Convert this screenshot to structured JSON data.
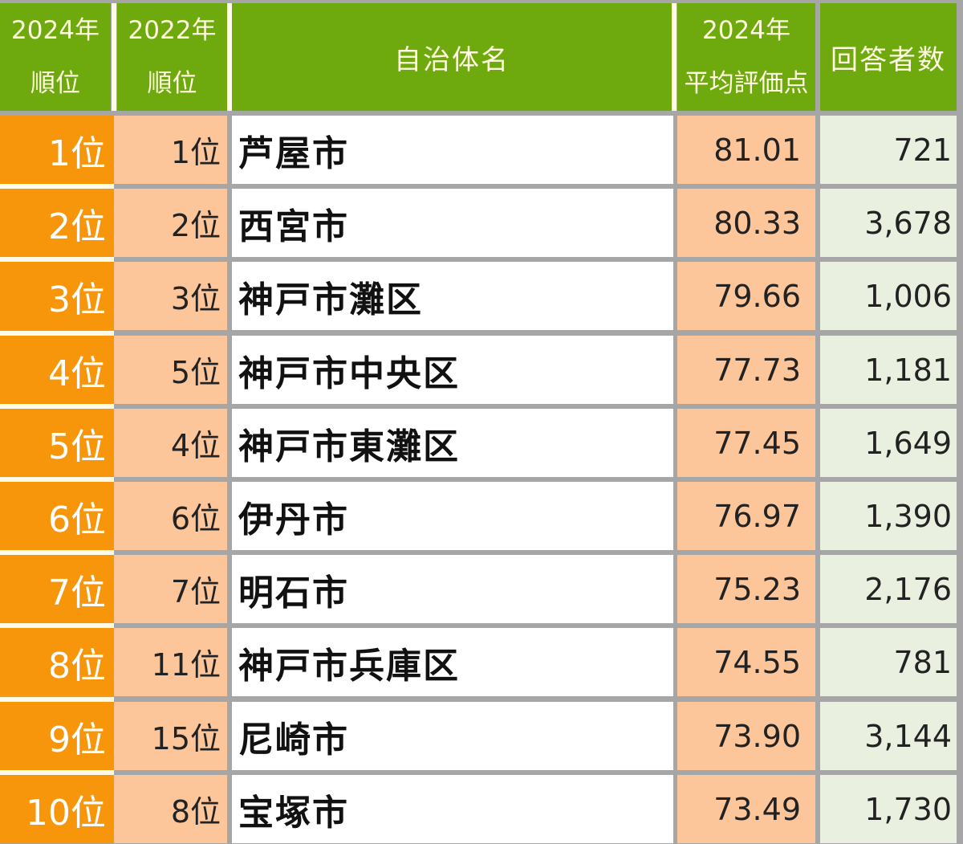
{
  "header": {
    "rank_2024": {
      "line1": "2024年",
      "line2": "順位"
    },
    "rank_2022": {
      "line1": "2022年",
      "line2": "順位"
    },
    "municipality": "自治体名",
    "avg_score_2024": {
      "line1": "2024年",
      "line2": "平均評価点"
    },
    "respondents": "回答者数"
  },
  "rows": [
    {
      "rank_2024": "1位",
      "rank_2022": "1位",
      "name": "芦屋市",
      "score": "81.01",
      "respondents": "721"
    },
    {
      "rank_2024": "2位",
      "rank_2022": "2位",
      "name": "西宮市",
      "score": "80.33",
      "respondents": "3,678"
    },
    {
      "rank_2024": "3位",
      "rank_2022": "3位",
      "name": "神戸市灘区",
      "score": "79.66",
      "respondents": "1,006"
    },
    {
      "rank_2024": "4位",
      "rank_2022": "5位",
      "name": "神戸市中央区",
      "score": "77.73",
      "respondents": "1,181"
    },
    {
      "rank_2024": "5位",
      "rank_2022": "4位",
      "name": "神戸市東灘区",
      "score": "77.45",
      "respondents": "1,649"
    },
    {
      "rank_2024": "6位",
      "rank_2022": "6位",
      "name": "伊丹市",
      "score": "76.97",
      "respondents": "1,390"
    },
    {
      "rank_2024": "7位",
      "rank_2022": "7位",
      "name": "明石市",
      "score": "75.23",
      "respondents": "2,176"
    },
    {
      "rank_2024": "8位",
      "rank_2022": "11位",
      "name": "神戸市兵庫区",
      "score": "74.55",
      "respondents": "781"
    },
    {
      "rank_2024": "9位",
      "rank_2022": "15位",
      "name": "尼崎市",
      "score": "73.90",
      "respondents": "3,144"
    },
    {
      "rank_2024": "10位",
      "rank_2022": "8位",
      "name": "宝塚市",
      "score": "73.49",
      "respondents": "1,730"
    }
  ],
  "colors": {
    "header_bg": "#6eaa0e",
    "header_text": "#fffbe0",
    "rank_2024_bg": "#f7960a",
    "peach_bg": "#fcc59a",
    "respondents_bg": "#eaf0e0",
    "grid": "#a6a6a6"
  }
}
